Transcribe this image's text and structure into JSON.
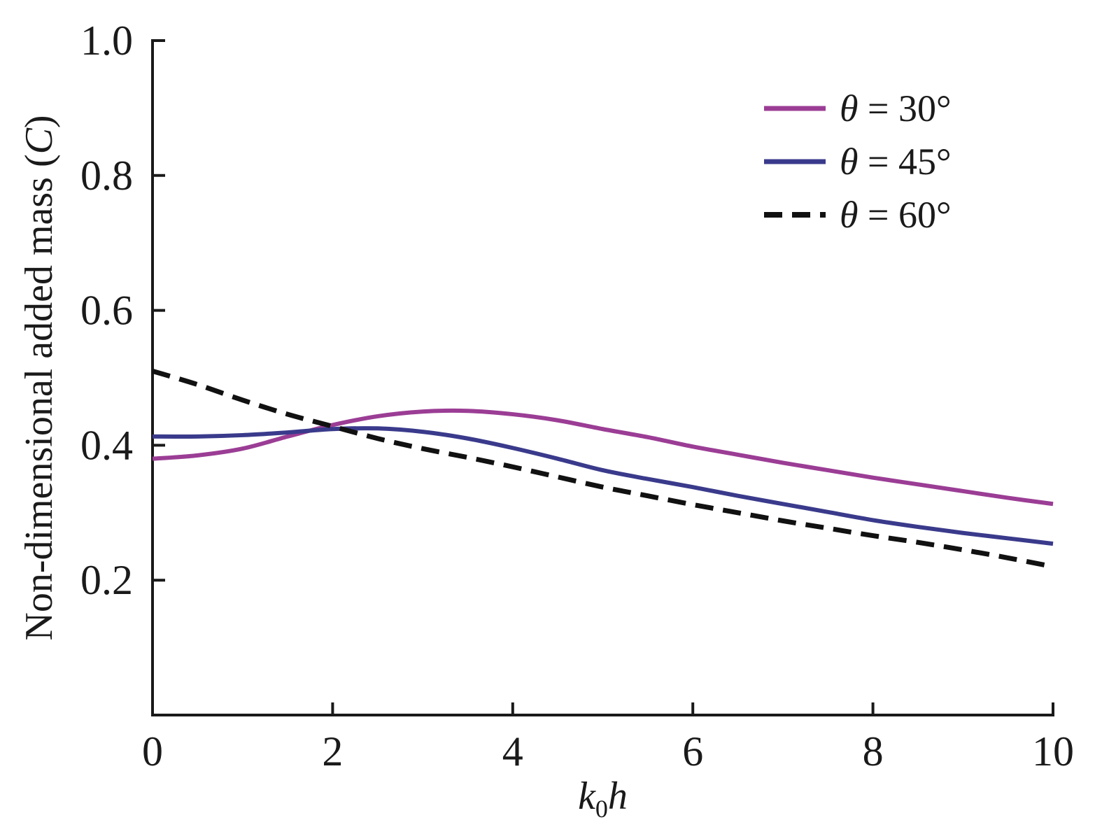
{
  "chart_data": {
    "type": "line",
    "title": "",
    "xlabel": {
      "main": "k",
      "sub": "0",
      "tail": "h"
    },
    "ylabel": "Non-dimensional added mass (C)",
    "xlim": [
      0,
      10
    ],
    "ylim": [
      0,
      1.0
    ],
    "x_ticks": [
      0,
      2,
      4,
      6,
      8,
      10
    ],
    "x_tick_labels": [
      "0",
      "2",
      "4",
      "6",
      "8",
      "10"
    ],
    "y_ticks": [
      0.2,
      0.4,
      0.6,
      0.8,
      1.0
    ],
    "y_tick_labels": [
      "0.2",
      "0.4",
      "0.6",
      "0.8",
      "1.0"
    ],
    "grid": false,
    "legend_position": "top-right",
    "x": [
      0,
      0.5,
      1.0,
      1.5,
      2.0,
      2.5,
      3.0,
      3.5,
      4.0,
      4.5,
      5.0,
      5.5,
      6.0,
      6.5,
      7.0,
      7.5,
      8.0,
      8.5,
      9.0,
      9.5,
      10.0
    ],
    "series": [
      {
        "name": "θ = 30°",
        "legend": {
          "symbol": "θ",
          "rest": " = 30°"
        },
        "color": "#9b3d95",
        "dash": "solid",
        "values": [
          0.38,
          0.385,
          0.395,
          0.413,
          0.43,
          0.443,
          0.45,
          0.451,
          0.446,
          0.437,
          0.424,
          0.412,
          0.398,
          0.386,
          0.374,
          0.363,
          0.352,
          0.342,
          0.332,
          0.322,
          0.313
        ]
      },
      {
        "name": "θ = 45°",
        "legend": {
          "symbol": "θ",
          "rest": " = 45°"
        },
        "color": "#3a3a8c",
        "dash": "solid",
        "values": [
          0.413,
          0.413,
          0.415,
          0.419,
          0.424,
          0.425,
          0.42,
          0.41,
          0.396,
          0.38,
          0.363,
          0.35,
          0.338,
          0.325,
          0.313,
          0.301,
          0.289,
          0.279,
          0.27,
          0.262,
          0.254
        ]
      },
      {
        "name": "θ = 60°",
        "legend": {
          "symbol": "θ",
          "rest": " = 60°"
        },
        "color": "#111111",
        "dash": "dashed",
        "values": [
          0.51,
          0.49,
          0.467,
          0.446,
          0.428,
          0.41,
          0.395,
          0.382,
          0.368,
          0.353,
          0.338,
          0.325,
          0.312,
          0.3,
          0.288,
          0.277,
          0.266,
          0.256,
          0.245,
          0.233,
          0.22
        ]
      }
    ],
    "colors": {
      "axis": "#1a1a1a",
      "background": "#ffffff"
    }
  }
}
